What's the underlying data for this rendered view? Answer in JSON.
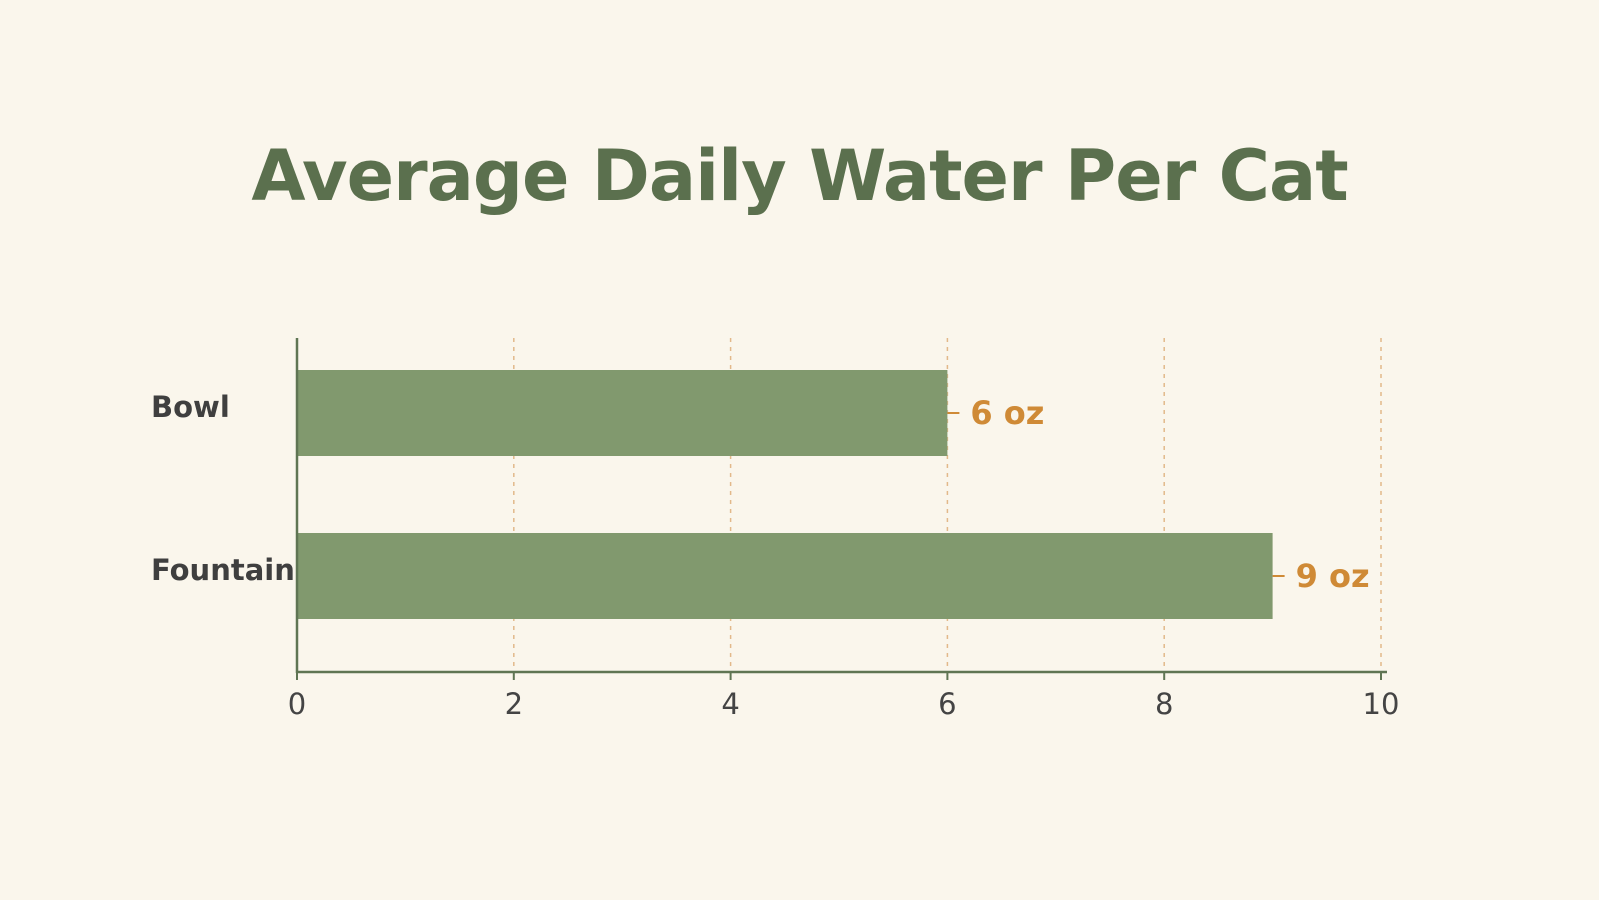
{
  "chart_data": {
    "type": "bar",
    "orientation": "horizontal",
    "title": "Average Daily Water Per Cat",
    "categories": [
      "Bowl",
      "Fountain"
    ],
    "values": [
      6,
      9
    ],
    "data_labels": [
      "6 oz",
      "9 oz"
    ],
    "xlabel": "",
    "ylabel": "",
    "xlim": [
      0,
      10
    ],
    "xticks": [
      0,
      2,
      4,
      6,
      8,
      10
    ],
    "grid": "vertical dashed",
    "legend": "none",
    "colors": {
      "background": "#faf6ec",
      "bar": "#81996e",
      "title": "#5b704e",
      "axis": "#5f7553",
      "grid": "#e2b98a",
      "data_label": "#cf8a36",
      "category_label": "#3f3f3f",
      "tick_label": "#444444"
    }
  }
}
